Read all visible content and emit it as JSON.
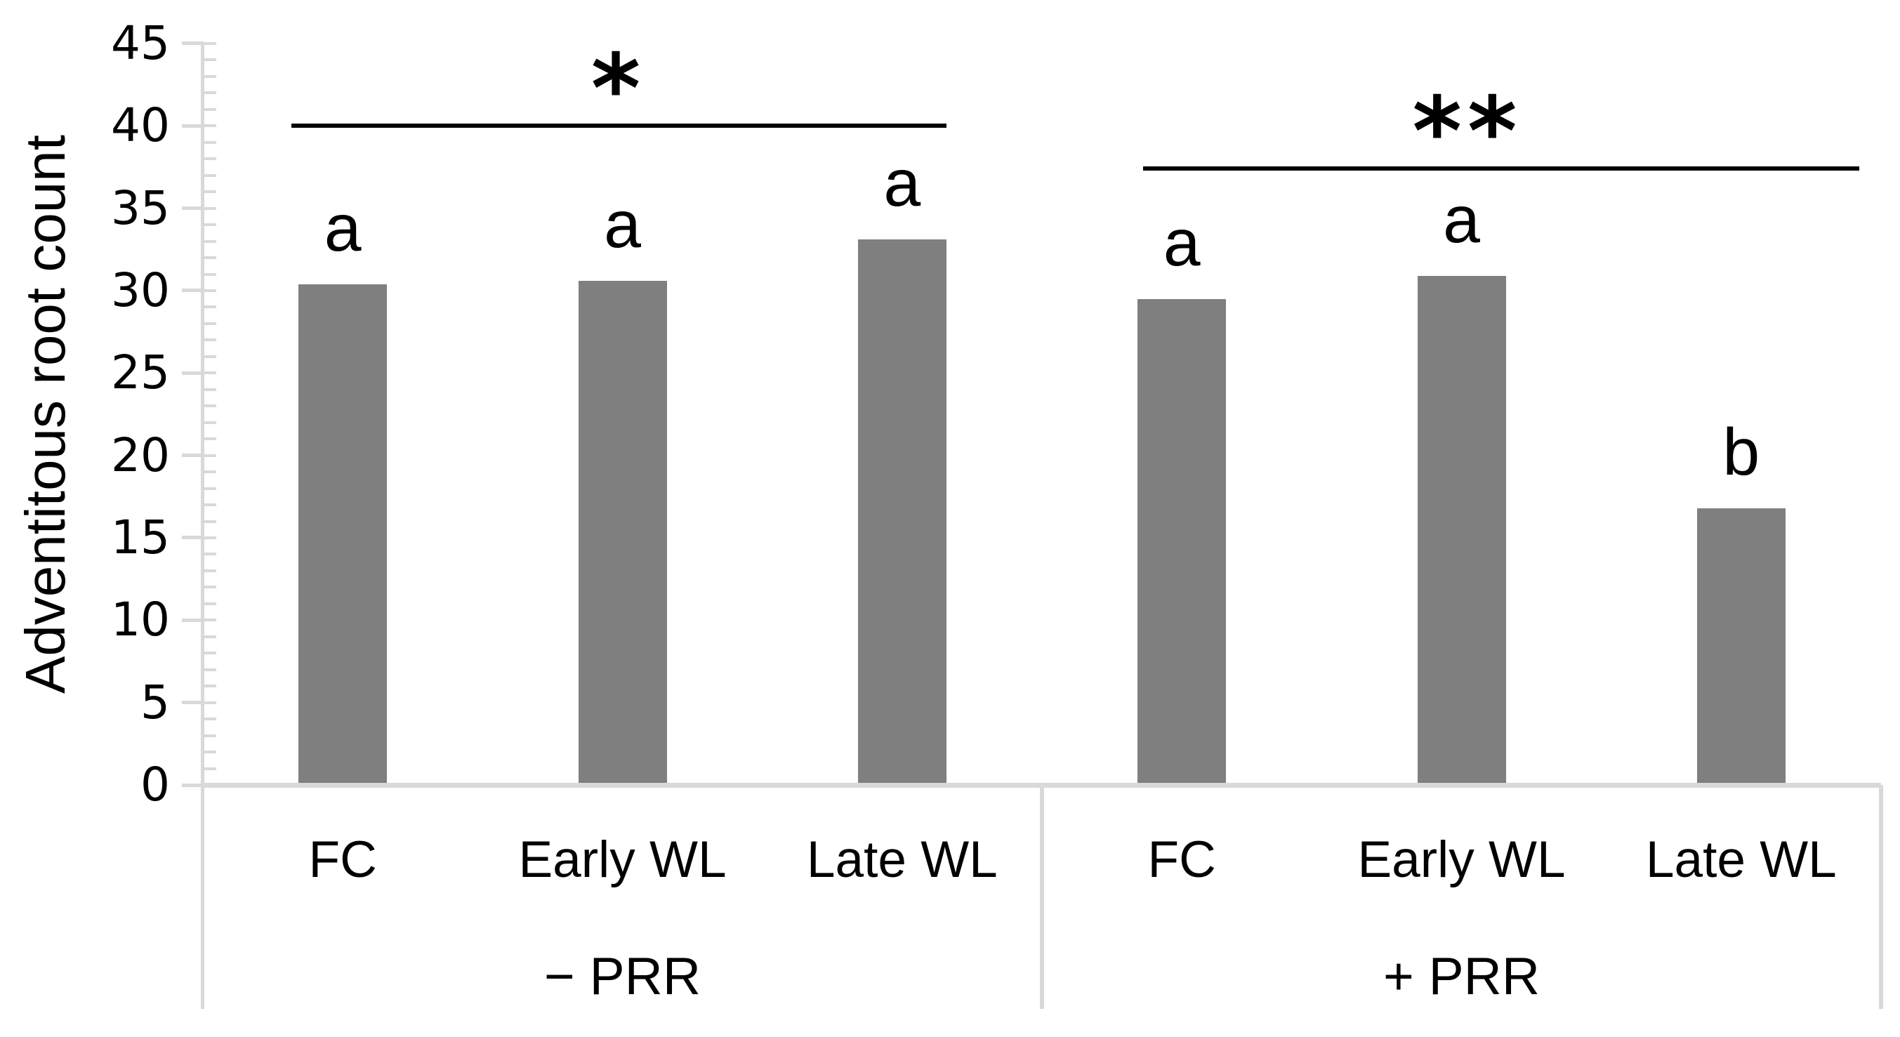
{
  "chart_data": {
    "type": "bar",
    "title": "",
    "xlabel": "",
    "ylabel": "Adventitous root count",
    "ylim": [
      0,
      45
    ],
    "yticks": [
      0,
      5,
      10,
      15,
      20,
      25,
      30,
      35,
      40,
      45
    ],
    "ytick_minor_step": 1,
    "grid": false,
    "legend": "none",
    "bar_color": "#7f7f7f",
    "axis_color": "#d9d9d9",
    "annotation_color": "#000000",
    "groups": [
      {
        "label": "− PRR",
        "categories": [
          "FC",
          "Early WL",
          "Late WL"
        ],
        "values": [
          30.4,
          30.6,
          33.1
        ],
        "bar_letters": [
          "a",
          "a",
          "a"
        ],
        "sig_symbol": "*",
        "sig_line_value": 40
      },
      {
        "label": "+ PRR",
        "categories": [
          "FC",
          "Early WL",
          "Late WL"
        ],
        "values": [
          29.5,
          30.9,
          16.8
        ],
        "bar_letters": [
          "a",
          "a",
          "b"
        ],
        "sig_symbol": "**",
        "sig_line_value": 37.4
      }
    ]
  }
}
